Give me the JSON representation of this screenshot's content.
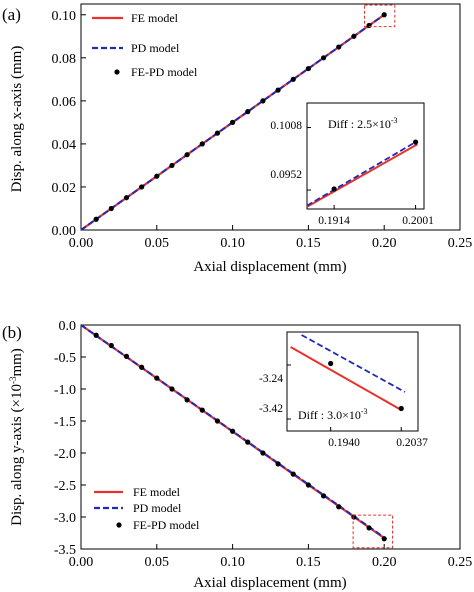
{
  "chart_data": [
    {
      "panel_label": "(a)",
      "type": "line",
      "xlabel": "Axial displacement (mm)",
      "ylabel": "Disp. along x-axis (mm)",
      "xlim": [
        0.0,
        0.25
      ],
      "ylim": [
        0.0,
        0.105
      ],
      "xticks": [
        "0.00",
        "0.05",
        "0.10",
        "0.15",
        "0.20",
        "0.25"
      ],
      "yticks": [
        "0.00",
        "0.02",
        "0.04",
        "0.06",
        "0.08",
        "0.10"
      ],
      "legend_position": "top-left",
      "series": [
        {
          "name": "FE model",
          "style": "solid",
          "color": "#e8322d",
          "x": [
            0.0,
            0.2
          ],
          "y": [
            0.0,
            0.1
          ]
        },
        {
          "name": "PD model",
          "style": "dashed",
          "color": "#1f2bb5",
          "x": [
            0.0,
            0.2
          ],
          "y": [
            0.0,
            0.1
          ]
        },
        {
          "name": "FE-PD model",
          "style": "markers",
          "color": "#000000",
          "x": [
            0.01,
            0.02,
            0.03,
            0.04,
            0.05,
            0.06,
            0.07,
            0.08,
            0.09,
            0.1,
            0.11,
            0.12,
            0.13,
            0.14,
            0.15,
            0.16,
            0.17,
            0.18,
            0.19,
            0.2
          ],
          "y": [
            0.005,
            0.01,
            0.015,
            0.02,
            0.025,
            0.03,
            0.035,
            0.04,
            0.045,
            0.05,
            0.055,
            0.06,
            0.065,
            0.07,
            0.075,
            0.08,
            0.085,
            0.09,
            0.095,
            0.1
          ]
        }
      ],
      "highlight_box": {
        "x": [
          0.187,
          0.207
        ],
        "y": [
          0.0945,
          0.1045
        ]
      },
      "inset": {
        "xticks": [
          "0.1914",
          "0.2001"
        ],
        "yticks": [
          "0.0952",
          "0.1008"
        ],
        "xlim": [
          0.1885,
          0.201
        ],
        "ylim": [
          0.0935,
          0.103
        ],
        "annotation": {
          "prefix": "Diff : 2.5×10",
          "exponent": "-3"
        },
        "fe_line": {
          "x": [
            0.1885,
            0.2003
          ],
          "y": [
            0.0937,
            0.0993
          ]
        },
        "pd_line": {
          "x": [
            0.1885,
            0.2003
          ],
          "y": [
            0.0938,
            0.0996
          ]
        },
        "markers": {
          "x": [
            0.1914,
            0.2001
          ],
          "y": [
            0.0953,
            0.0995
          ]
        }
      }
    },
    {
      "panel_label": "(b)",
      "type": "line",
      "xlabel": "Axial displacement (mm)",
      "ylabel_prefix": "Disp. along y-axis (×10",
      "ylabel_exponent": "-3",
      "ylabel_suffix": "mm)",
      "xlim": [
        0.0,
        0.25
      ],
      "ylim": [
        -3.5,
        0.0
      ],
      "xticks": [
        "0.00",
        "0.05",
        "0.10",
        "0.15",
        "0.20",
        "0.25"
      ],
      "yticks": [
        "0.0",
        "-0.5",
        "-1.0",
        "-1.5",
        "-2.0",
        "-2.5",
        "-3.0",
        "-3.5"
      ],
      "legend_position": "bottom-left",
      "series": [
        {
          "name": "FE model",
          "style": "solid",
          "color": "#e8322d",
          "x": [
            0.0,
            0.2
          ],
          "y": [
            0.0,
            -3.33
          ]
        },
        {
          "name": "PD model",
          "style": "dashed",
          "color": "#1f2bb5",
          "x": [
            0.0,
            0.2
          ],
          "y": [
            0.0,
            -3.32
          ]
        },
        {
          "name": "FE-PD model",
          "style": "markers",
          "color": "#000000",
          "x": [
            0.01,
            0.02,
            0.03,
            0.04,
            0.05,
            0.06,
            0.07,
            0.08,
            0.09,
            0.1,
            0.11,
            0.12,
            0.13,
            0.14,
            0.15,
            0.16,
            0.17,
            0.18,
            0.19,
            0.2
          ],
          "y": [
            -0.16,
            -0.32,
            -0.49,
            -0.66,
            -0.83,
            -1.0,
            -1.17,
            -1.33,
            -1.5,
            -1.66,
            -1.83,
            -2.0,
            -2.17,
            -2.33,
            -2.5,
            -2.67,
            -2.84,
            -3.0,
            -3.17,
            -3.34
          ]
        }
      ],
      "highlight_box": {
        "x": [
          0.1795,
          0.2055
        ],
        "y": [
          -2.97,
          -3.48
        ]
      },
      "inset": {
        "xticks": [
          "0.1940",
          "0.2037"
        ],
        "yticks": [
          "-3.24",
          "-3.42"
        ],
        "xlim": [
          0.188,
          0.206
        ],
        "ylim": [
          -3.46,
          -3.13
        ],
        "annotation": {
          "prefix": "Diff : 3.0×10",
          "exponent": "-3"
        },
        "fe_line": {
          "x": [
            0.1885,
            0.2037
          ],
          "y": [
            -3.18,
            -3.39
          ]
        },
        "pd_line": {
          "x": [
            0.19,
            0.2042
          ],
          "y": [
            -3.14,
            -3.33
          ]
        },
        "markers": {
          "x": [
            0.194,
            0.2037
          ],
          "y": [
            -3.235,
            -3.385
          ]
        }
      }
    }
  ]
}
